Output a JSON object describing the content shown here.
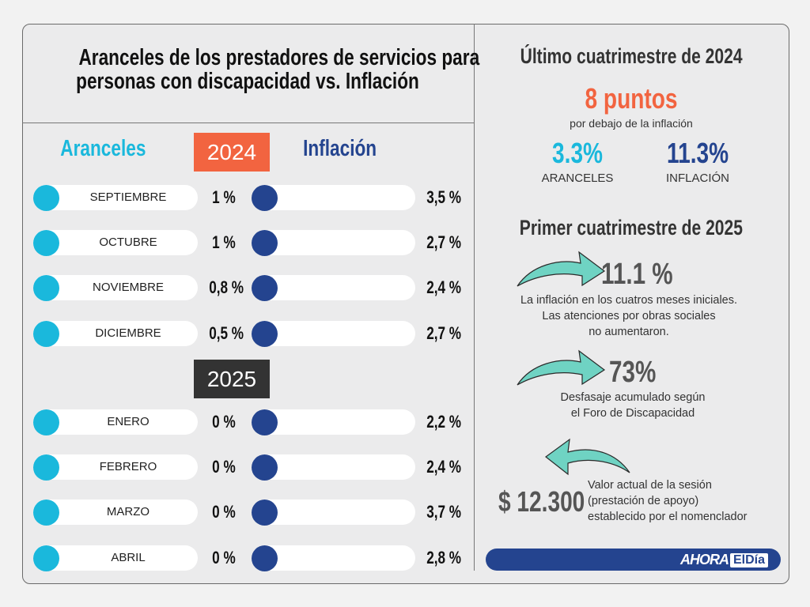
{
  "title": [
    "Aranceles de los prestadores de servicios para",
    "personas con discapacidad vs. Inflación"
  ],
  "columns": {
    "aranceles": "Aranceles",
    "inflacion": "Inflación"
  },
  "colors": {
    "aranceles": "#1ab8dc",
    "inflacion": "#24448f",
    "year_2024": "#f26440",
    "year_2025": "#333333",
    "accent_orange": "#f26440",
    "arrow": "#6fd3c3"
  },
  "years": [
    {
      "label": "2024",
      "rows": [
        {
          "month": "SEPTIEMBRE",
          "aranceles": "1 %",
          "inflacion": "3,5 %"
        },
        {
          "month": "OCTUBRE",
          "aranceles": "1 %",
          "inflacion": "2,7 %"
        },
        {
          "month": "NOVIEMBRE",
          "aranceles": "0,8 %",
          "inflacion": "2,4 %"
        },
        {
          "month": "DICIEMBRE",
          "aranceles": "0,5 %",
          "inflacion": "2,7 %"
        }
      ]
    },
    {
      "label": "2025",
      "rows": [
        {
          "month": "ENERO",
          "aranceles": "0 %",
          "inflacion": "2,2 %"
        },
        {
          "month": "FEBRERO",
          "aranceles": "0 %",
          "inflacion": "2,4 %"
        },
        {
          "month": "MARZO",
          "aranceles": "0 %",
          "inflacion": "3,7 %"
        },
        {
          "month": "ABRIL",
          "aranceles": "0 %",
          "inflacion": "2,8 %"
        }
      ]
    }
  ],
  "right": {
    "last_2024": {
      "heading": "Último cuatrimestre de 2024",
      "highlight": "8 puntos",
      "highlight_sub": "por debajo de la inflación",
      "aranceles_value": "3.3%",
      "aranceles_label": "ARANCELES",
      "inflacion_value": "11.3%",
      "inflacion_label": "INFLACIÓN"
    },
    "first_2025": {
      "heading": "Primer cuatrimestre de 2025",
      "items": [
        {
          "value": "11.1 %",
          "text": [
            "La inflación en los cuatros meses iniciales.",
            "Las atenciones por obras sociales",
            "no aumentaron."
          ]
        },
        {
          "value": "73%",
          "text": [
            "Desfasaje acumulado según",
            "el Foro de Discapacidad"
          ]
        },
        {
          "value": "$ 12.300",
          "text": [
            "Valor actual de la sesión",
            "(prestación de apoyo)",
            "establecido por el nomenclador"
          ]
        }
      ]
    }
  },
  "footer": {
    "logo_left": "AHORA",
    "logo_right": "ElDía"
  }
}
